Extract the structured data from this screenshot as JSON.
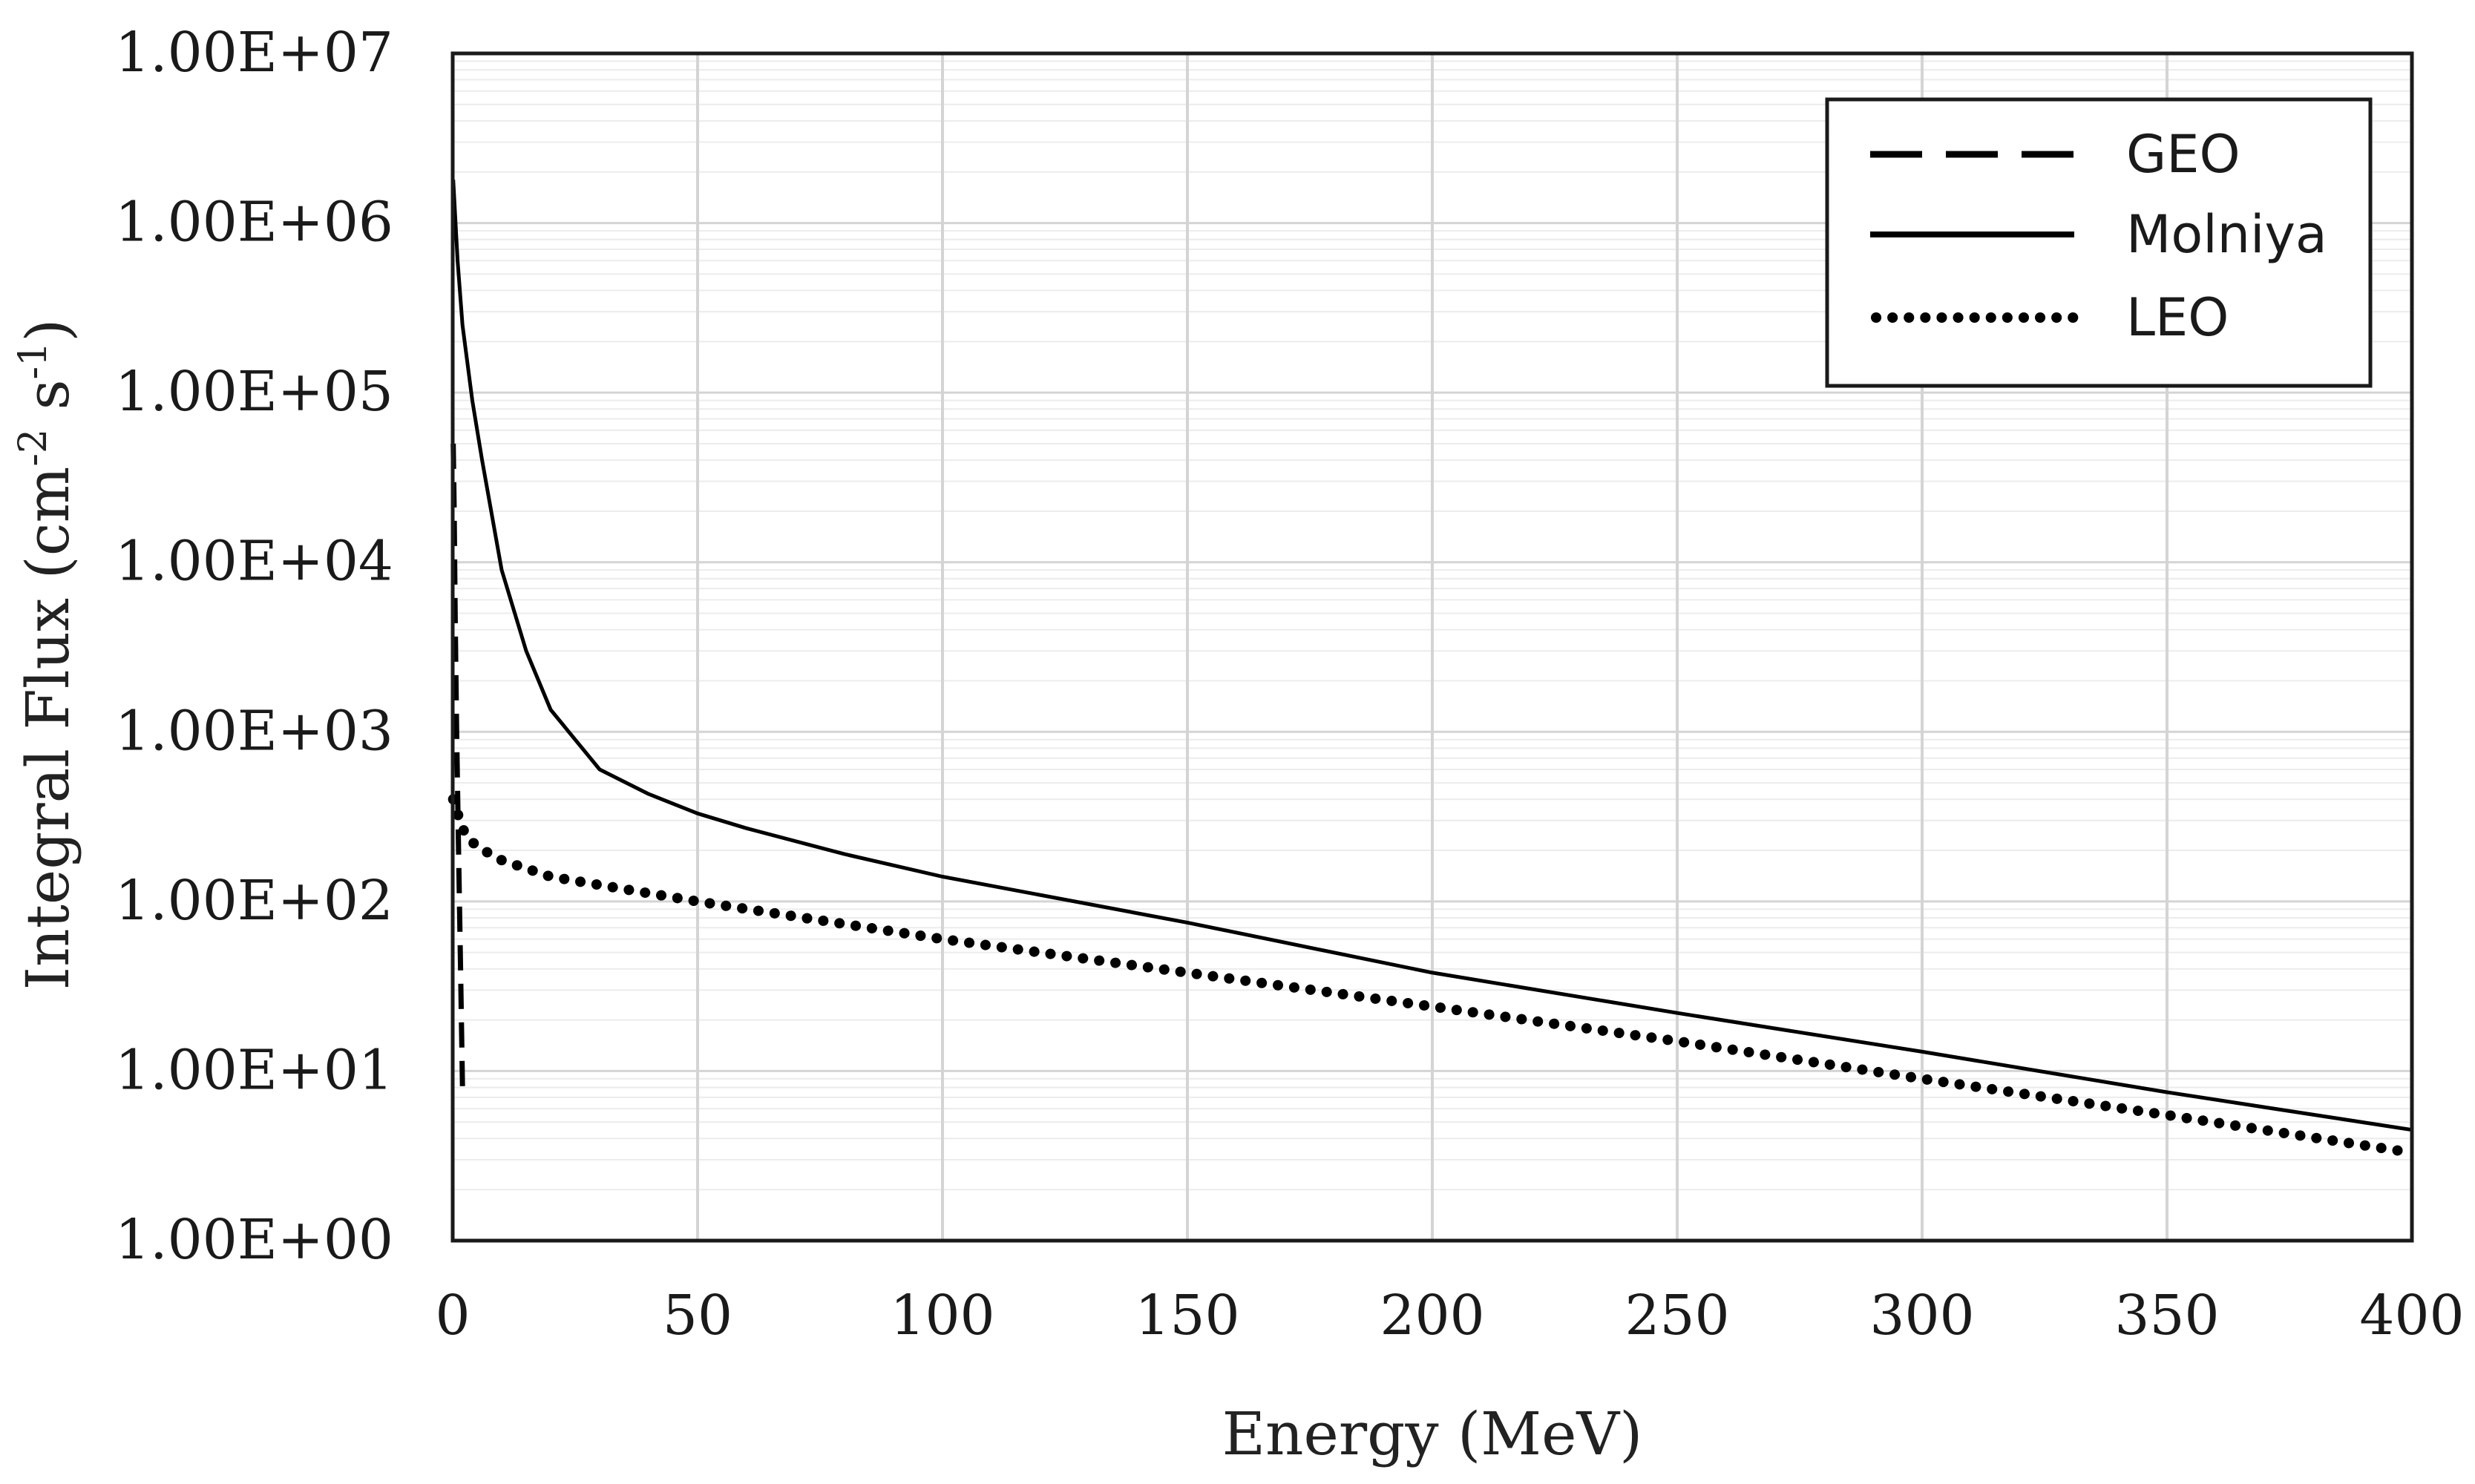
{
  "chart_data": {
    "type": "line",
    "xlabel": "Energy (MeV)",
    "ylabel": "Integral Flux (cm",
    "ylabel_sup1": "-2",
    "ylabel_mid": " s",
    "ylabel_sup2": "-1",
    "ylabel_end": ")",
    "y_scale": "log",
    "xlim": [
      0,
      400
    ],
    "ylim": [
      1,
      10000000
    ],
    "x_ticks": [
      0,
      50,
      100,
      150,
      200,
      250,
      300,
      350,
      400
    ],
    "x_tick_labels": [
      "0",
      "50",
      "100",
      "150",
      "200",
      "250",
      "300",
      "350",
      "400"
    ],
    "y_ticks": [
      1,
      10,
      100,
      1000,
      10000,
      100000,
      1000000,
      10000000
    ],
    "y_tick_labels": [
      "1.00E+00",
      "1.00E+01",
      "1.00E+02",
      "1.00E+03",
      "1.00E+04",
      "1.00E+05",
      "1.00E+06",
      "1.00E+07"
    ],
    "grid": true,
    "legend_position": "top-right",
    "series": [
      {
        "name": "GEO",
        "style": "dashed",
        "x": [
          0.1,
          0.3,
          0.5,
          0.8,
          1.2,
          1.6,
          2.0
        ],
        "y": [
          50000,
          20000,
          5000,
          1000,
          200,
          40,
          8
        ]
      },
      {
        "name": "Molniya",
        "style": "solid",
        "x": [
          0.1,
          1,
          2,
          4,
          6,
          10,
          15,
          20,
          30,
          40,
          50,
          60,
          80,
          100,
          150,
          200,
          250,
          300,
          350,
          400
        ],
        "y": [
          1800000,
          600000,
          250000,
          90000,
          40000,
          9000,
          3000,
          1350,
          600,
          430,
          330,
          270,
          190,
          140,
          75,
          38,
          22,
          13,
          7.5,
          4.5
        ]
      },
      {
        "name": "LEO",
        "style": "dotted",
        "x": [
          0.1,
          1,
          2,
          3,
          5,
          10,
          20,
          30,
          50,
          100,
          150,
          200,
          250,
          300,
          350,
          400
        ],
        "y": [
          400,
          330,
          270,
          240,
          210,
          175,
          140,
          125,
          100,
          60,
          38,
          24,
          15,
          9,
          5.5,
          3.3
        ]
      }
    ],
    "colors": {
      "line": "#000000",
      "grid_major": "#d4d4d4",
      "grid_minor": "#ececec",
      "frame": "#1a1a1a"
    }
  }
}
